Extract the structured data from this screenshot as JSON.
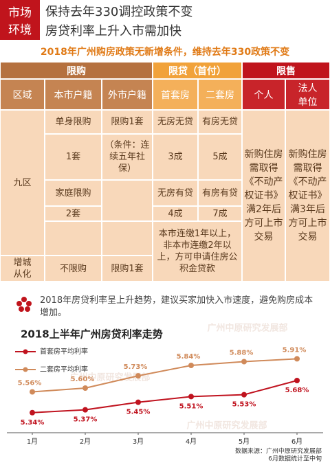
{
  "header": {
    "badge": [
      "市场",
      "环境"
    ],
    "title": [
      "保持去年330调控政策不变",
      "房贷利率上升入市需加快"
    ],
    "subtitle": "2018年广州购房政策无新增条件，维持去年330政策不变"
  },
  "table": {
    "groups": [
      "限购",
      "限贷（首付）",
      "限售"
    ],
    "columns": [
      "区域",
      "本市户籍",
      "外市户籍",
      "首套房",
      "二套房",
      "个人",
      "法人单位"
    ],
    "cells": [
      "九区",
      "增城从化",
      "单身限购",
      "限购1套",
      "无房无贷",
      "有房无贷",
      "1套",
      "（条件：连续五年社保）",
      "3成",
      "5成",
      "家庭限购",
      "无房有贷",
      "有房有贷",
      "2套",
      "4成",
      "7成",
      "本市连缴1年以上，非本市连缴2年以上，方可申请住房公积金贷款",
      "不限购",
      "限购1套",
      "新购住房需取得《不动产权证书》满2年后方可上市交易",
      "新购住房需取得《不动产权证书》满3年后方可上市交易"
    ]
  },
  "note": "2018年房贷利率呈上升趋势，建议买家加快入市速度，避免购房成本增加。",
  "chart_data": {
    "type": "line",
    "title": "2018上半年广州房贷利率走势",
    "categories": [
      "1月",
      "2月",
      "3月",
      "4月",
      "5月",
      "6月"
    ],
    "series": [
      {
        "name": "首套房平均利率",
        "color": "#c0131f",
        "values": [
          5.34,
          5.37,
          5.45,
          5.51,
          5.53,
          5.68
        ],
        "value_labels": [
          "5.34%",
          "5.37%",
          "5.45%",
          "5.51%",
          "5.53%",
          "5.68%"
        ]
      },
      {
        "name": "二套房平均利率",
        "color": "#d08a5a",
        "values": [
          5.56,
          5.6,
          5.73,
          5.84,
          5.88,
          5.91
        ],
        "value_labels": [
          "5.56%",
          "5.60%",
          "5.73%",
          "5.84%",
          "5.88%",
          "5.91%"
        ]
      }
    ],
    "ylim": [
      5.2,
      6.0
    ],
    "source": [
      "数据来源：广州中原研究发展部",
      "6月数据统计至中旬"
    ],
    "watermark": "广州中原研究发展部"
  }
}
